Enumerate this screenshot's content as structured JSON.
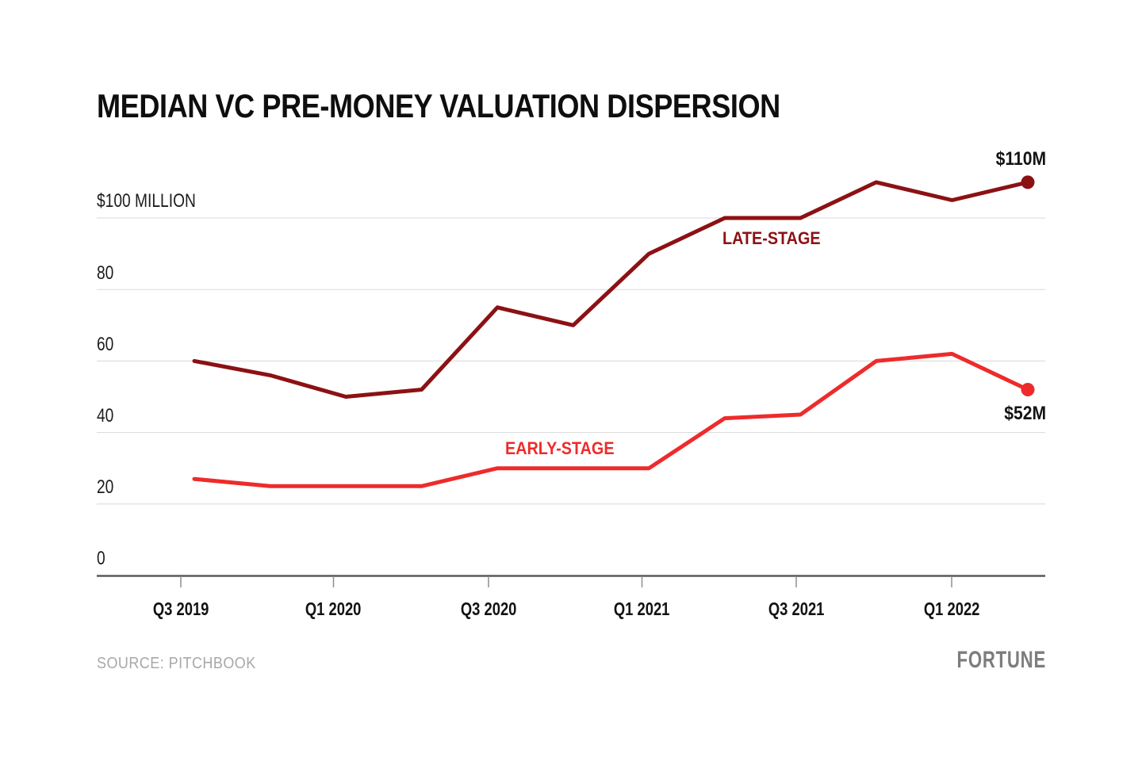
{
  "title": "MEDIAN VC PRE-MONEY VALUATION DISPERSION",
  "source_text": "SOURCE: PITCHBOOK",
  "brand_text": "FORTUNE",
  "colors": {
    "late_stage_red": "#8c1114",
    "early_stage_red": "#ee2b2b",
    "gridline_gray": "#d8d8d8",
    "axis_gray": "#5a5a5a",
    "tick_gray": "#8f8f8f",
    "text_black": "#111111",
    "muted_gray": "#a8a8a8",
    "brand_gray": "#7d7d7d"
  },
  "y_axis": {
    "tick_labels": [
      "$100 MILLION",
      "80",
      "60",
      "40",
      "20",
      "0"
    ],
    "tick_values": [
      100,
      80,
      60,
      40,
      20,
      0
    ]
  },
  "x_axis": {
    "tick_labels": [
      "Q3 2019",
      "Q1 2020",
      "Q3 2020",
      "Q1 2021",
      "Q3 2021",
      "Q1 2022"
    ]
  },
  "annotations": {
    "late_series_label": "LATE-STAGE",
    "early_series_label": "EARLY-STAGE",
    "late_end_label": "$110M",
    "early_end_label": "$52M"
  },
  "chart_data": {
    "type": "line",
    "title": "MEDIAN VC PRE-MONEY VALUATION DISPERSION",
    "unit": "$ millions (median VC pre-money valuation)",
    "categories": [
      "Q3 2019",
      "Q4 2019",
      "Q1 2020",
      "Q2 2020",
      "Q3 2020",
      "Q4 2020",
      "Q1 2021",
      "Q2 2021",
      "Q3 2021",
      "Q4 2021",
      "Q1 2022",
      "Q2 2022"
    ],
    "series": [
      {
        "name": "LATE-STAGE",
        "color": "#8c1114",
        "values": [
          60,
          56,
          50,
          52,
          75,
          70,
          90,
          100,
          100,
          110,
          105,
          110
        ],
        "end_label": "$110M"
      },
      {
        "name": "EARLY-STAGE",
        "color": "#ee2b2b",
        "values": [
          27,
          25,
          25,
          25,
          30,
          30,
          30,
          44,
          45,
          60,
          62,
          52
        ],
        "end_label": "$52M"
      }
    ],
    "ylim": [
      0,
      115
    ],
    "y_ticks_shown": [
      0,
      20,
      40,
      60,
      80,
      100
    ],
    "x_ticks_shown": [
      "Q3 2019",
      "Q1 2020",
      "Q3 2020",
      "Q1 2021",
      "Q3 2021",
      "Q1 2022"
    ],
    "grid": true,
    "legend_position": "inline-labels",
    "source": "PITCHBOOK"
  }
}
